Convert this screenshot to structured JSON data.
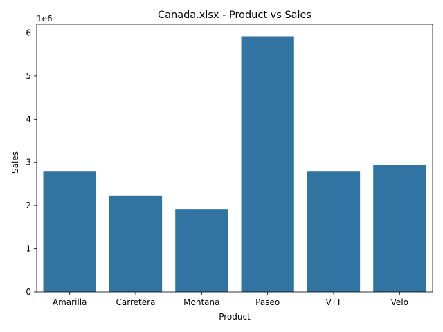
{
  "chart_data": {
    "type": "bar",
    "title": "Canada.xlsx - Product vs Sales",
    "xlabel": "Product",
    "ylabel": "Sales",
    "y_scale_label": "1e6",
    "categories": [
      "Amarilla",
      "Carretera",
      "Montana",
      "Paseo",
      "VTT",
      "Velo"
    ],
    "values": [
      2800000,
      2230000,
      1920000,
      5920000,
      2800000,
      2940000
    ],
    "ylim": [
      0,
      6200000
    ],
    "yticks": [
      0,
      1000000,
      2000000,
      3000000,
      4000000,
      5000000,
      6000000
    ],
    "ytick_labels": [
      "0",
      "1",
      "2",
      "3",
      "4",
      "5",
      "6"
    ],
    "bar_color": "#3274a1",
    "grid": false,
    "legend": "none"
  }
}
